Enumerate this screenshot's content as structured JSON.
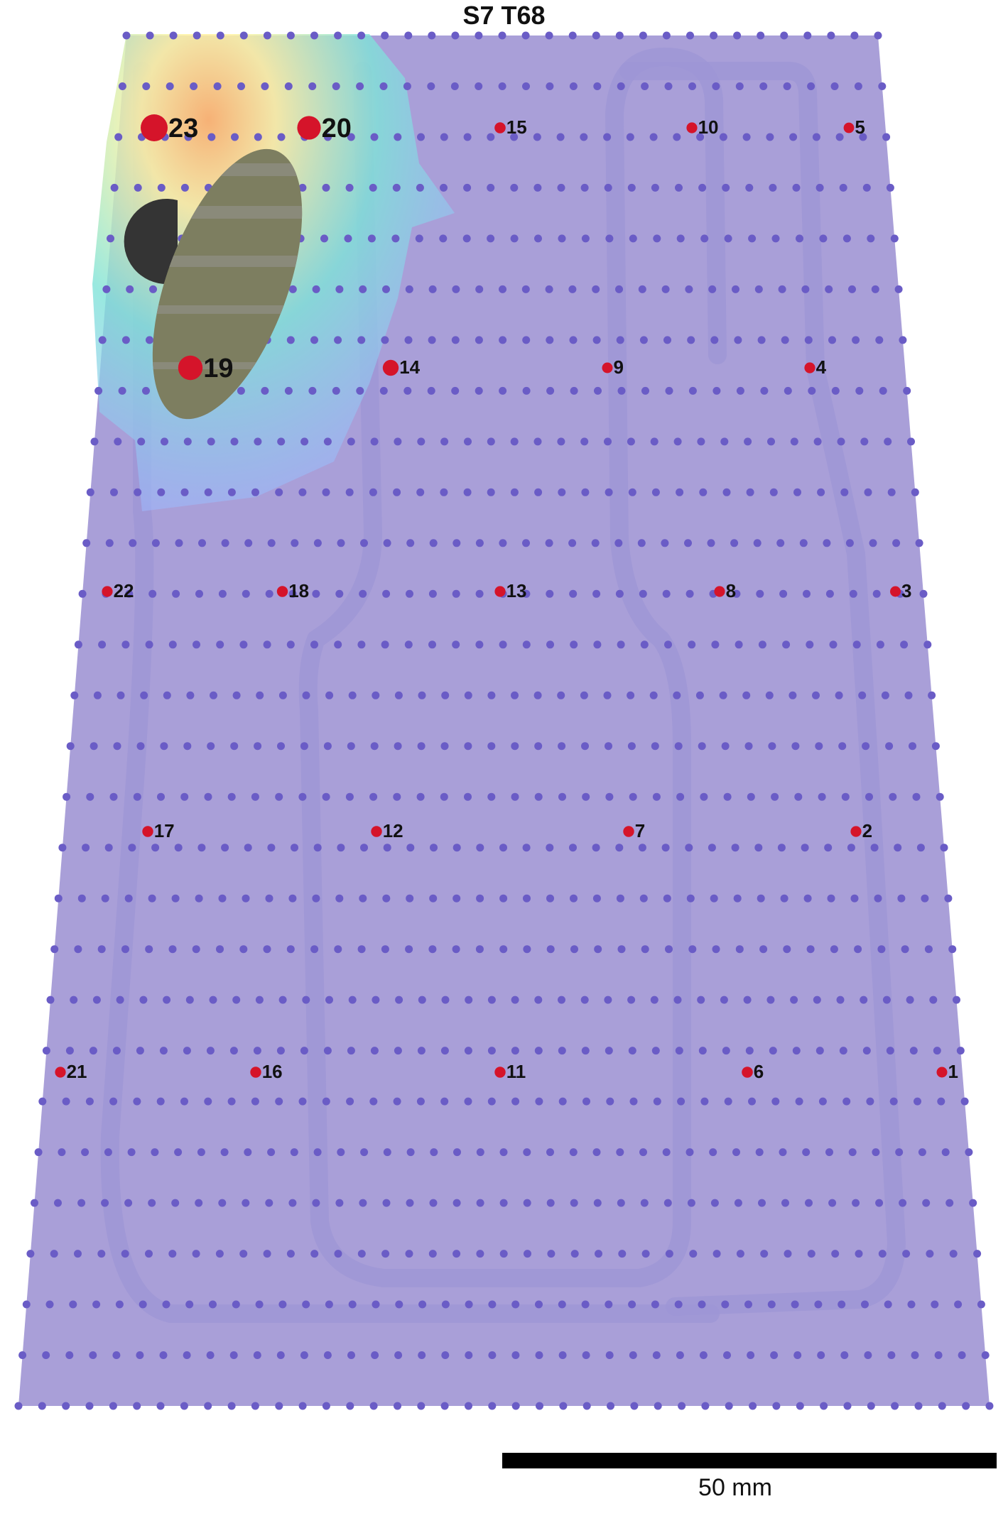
{
  "title": "S7 T68",
  "scale_bar": {
    "label": "50 mm"
  },
  "colors": {
    "pad": "#a99fd8",
    "grid_dot": "#6a5cc6",
    "track": "#9d96d6",
    "electrode": "#d5142a",
    "label": "#111111",
    "heat_low": "#9fb6ff",
    "heat_mid": "#7fe3d8",
    "heat_high": "#fff3a0",
    "heat_peak": "#ffb36b",
    "object_dark": "#343434",
    "object_band": "#7d7e60",
    "object_band_alt": "#8a8a7a"
  },
  "sensors": [
    {
      "label": "1",
      "level": 0.04
    },
    {
      "label": "2",
      "level": 0.05
    },
    {
      "label": "3",
      "level": 0.04
    },
    {
      "label": "4",
      "level": 0.05
    },
    {
      "label": "5",
      "level": 0.03
    },
    {
      "label": "6",
      "level": 0.07
    },
    {
      "label": "7",
      "level": 0.06
    },
    {
      "label": "8",
      "level": 0.05
    },
    {
      "label": "9",
      "level": 0.04
    },
    {
      "label": "10",
      "level": 0.05
    },
    {
      "label": "11",
      "level": 0.06
    },
    {
      "label": "12",
      "level": 0.06
    },
    {
      "label": "13",
      "level": 0.05
    },
    {
      "label": "14",
      "level": 0.35
    },
    {
      "label": "15",
      "level": 0.07
    },
    {
      "label": "16",
      "level": 0.06
    },
    {
      "label": "17",
      "level": 0.06
    },
    {
      "label": "18",
      "level": 0.06
    },
    {
      "label": "19",
      "level": 0.85
    },
    {
      "label": "20",
      "level": 0.8
    },
    {
      "label": "21",
      "level": 0.05
    },
    {
      "label": "22",
      "level": 0.05
    },
    {
      "label": "23",
      "level": 1.0
    }
  ]
}
